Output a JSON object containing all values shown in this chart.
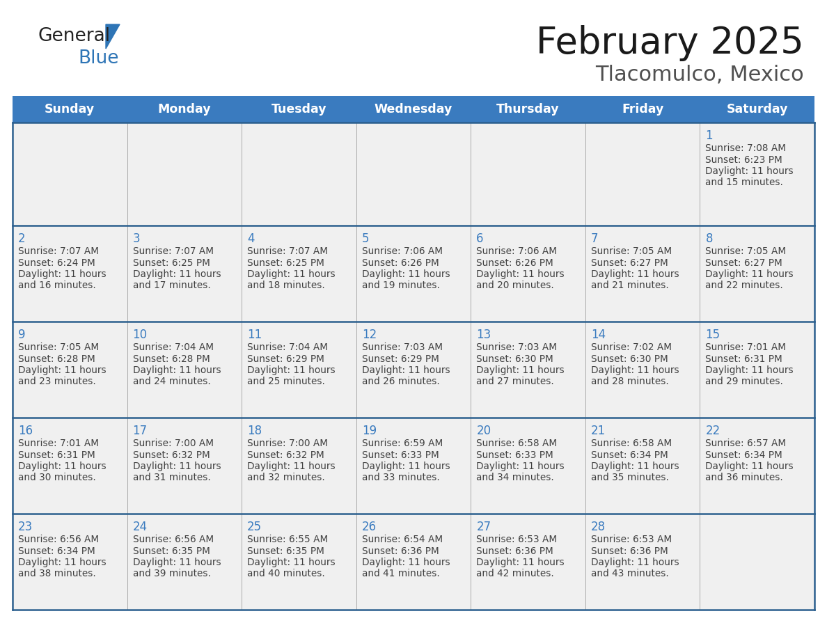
{
  "title": "February 2025",
  "subtitle": "Tlacomulco, Mexico",
  "days_of_week": [
    "Sunday",
    "Monday",
    "Tuesday",
    "Wednesday",
    "Thursday",
    "Friday",
    "Saturday"
  ],
  "header_bg": "#3A7BBF",
  "header_text": "#FFFFFF",
  "day_number_color": "#3A7BBF",
  "cell_text_color": "#404040",
  "cell_bg": "#F0F0F0",
  "border_color": "#2E5F8A",
  "title_color": "#1A1A1A",
  "subtitle_color": "#505050",
  "logo_general_color": "#222222",
  "logo_blue_color": "#2E75B6",
  "calendar_data": [
    [
      null,
      null,
      null,
      null,
      null,
      null,
      {
        "day": 1,
        "sunrise": "7:08 AM",
        "sunset": "6:23 PM",
        "daylight_hours": 11,
        "daylight_minutes": 15
      }
    ],
    [
      {
        "day": 2,
        "sunrise": "7:07 AM",
        "sunset": "6:24 PM",
        "daylight_hours": 11,
        "daylight_minutes": 16
      },
      {
        "day": 3,
        "sunrise": "7:07 AM",
        "sunset": "6:25 PM",
        "daylight_hours": 11,
        "daylight_minutes": 17
      },
      {
        "day": 4,
        "sunrise": "7:07 AM",
        "sunset": "6:25 PM",
        "daylight_hours": 11,
        "daylight_minutes": 18
      },
      {
        "day": 5,
        "sunrise": "7:06 AM",
        "sunset": "6:26 PM",
        "daylight_hours": 11,
        "daylight_minutes": 19
      },
      {
        "day": 6,
        "sunrise": "7:06 AM",
        "sunset": "6:26 PM",
        "daylight_hours": 11,
        "daylight_minutes": 20
      },
      {
        "day": 7,
        "sunrise": "7:05 AM",
        "sunset": "6:27 PM",
        "daylight_hours": 11,
        "daylight_minutes": 21
      },
      {
        "day": 8,
        "sunrise": "7:05 AM",
        "sunset": "6:27 PM",
        "daylight_hours": 11,
        "daylight_minutes": 22
      }
    ],
    [
      {
        "day": 9,
        "sunrise": "7:05 AM",
        "sunset": "6:28 PM",
        "daylight_hours": 11,
        "daylight_minutes": 23
      },
      {
        "day": 10,
        "sunrise": "7:04 AM",
        "sunset": "6:28 PM",
        "daylight_hours": 11,
        "daylight_minutes": 24
      },
      {
        "day": 11,
        "sunrise": "7:04 AM",
        "sunset": "6:29 PM",
        "daylight_hours": 11,
        "daylight_minutes": 25
      },
      {
        "day": 12,
        "sunrise": "7:03 AM",
        "sunset": "6:29 PM",
        "daylight_hours": 11,
        "daylight_minutes": 26
      },
      {
        "day": 13,
        "sunrise": "7:03 AM",
        "sunset": "6:30 PM",
        "daylight_hours": 11,
        "daylight_minutes": 27
      },
      {
        "day": 14,
        "sunrise": "7:02 AM",
        "sunset": "6:30 PM",
        "daylight_hours": 11,
        "daylight_minutes": 28
      },
      {
        "day": 15,
        "sunrise": "7:01 AM",
        "sunset": "6:31 PM",
        "daylight_hours": 11,
        "daylight_minutes": 29
      }
    ],
    [
      {
        "day": 16,
        "sunrise": "7:01 AM",
        "sunset": "6:31 PM",
        "daylight_hours": 11,
        "daylight_minutes": 30
      },
      {
        "day": 17,
        "sunrise": "7:00 AM",
        "sunset": "6:32 PM",
        "daylight_hours": 11,
        "daylight_minutes": 31
      },
      {
        "day": 18,
        "sunrise": "7:00 AM",
        "sunset": "6:32 PM",
        "daylight_hours": 11,
        "daylight_minutes": 32
      },
      {
        "day": 19,
        "sunrise": "6:59 AM",
        "sunset": "6:33 PM",
        "daylight_hours": 11,
        "daylight_minutes": 33
      },
      {
        "day": 20,
        "sunrise": "6:58 AM",
        "sunset": "6:33 PM",
        "daylight_hours": 11,
        "daylight_minutes": 34
      },
      {
        "day": 21,
        "sunrise": "6:58 AM",
        "sunset": "6:34 PM",
        "daylight_hours": 11,
        "daylight_minutes": 35
      },
      {
        "day": 22,
        "sunrise": "6:57 AM",
        "sunset": "6:34 PM",
        "daylight_hours": 11,
        "daylight_minutes": 36
      }
    ],
    [
      {
        "day": 23,
        "sunrise": "6:56 AM",
        "sunset": "6:34 PM",
        "daylight_hours": 11,
        "daylight_minutes": 38
      },
      {
        "day": 24,
        "sunrise": "6:56 AM",
        "sunset": "6:35 PM",
        "daylight_hours": 11,
        "daylight_minutes": 39
      },
      {
        "day": 25,
        "sunrise": "6:55 AM",
        "sunset": "6:35 PM",
        "daylight_hours": 11,
        "daylight_minutes": 40
      },
      {
        "day": 26,
        "sunrise": "6:54 AM",
        "sunset": "6:36 PM",
        "daylight_hours": 11,
        "daylight_minutes": 41
      },
      {
        "day": 27,
        "sunrise": "6:53 AM",
        "sunset": "6:36 PM",
        "daylight_hours": 11,
        "daylight_minutes": 42
      },
      {
        "day": 28,
        "sunrise": "6:53 AM",
        "sunset": "6:36 PM",
        "daylight_hours": 11,
        "daylight_minutes": 43
      },
      null
    ]
  ]
}
